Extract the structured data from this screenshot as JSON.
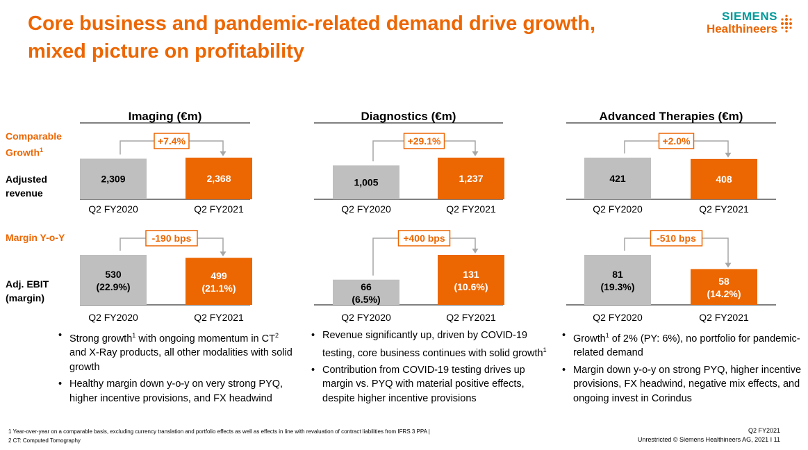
{
  "title": {
    "line1": "Core business and pandemic-related demand drive growth,",
    "line2": "mixed picture on profitability"
  },
  "logo": {
    "brand": "SIEMENS",
    "product": "Healthineers",
    "dots_icon": "dots-icon"
  },
  "row_labels": {
    "comparable_growth": "Comparable",
    "comparable_growth_2": "Growth",
    "comparable_growth_sup": "1",
    "adjusted_revenue_1": "Adjusted",
    "adjusted_revenue_2": "revenue",
    "margin_yoy": "Margin Y-o-Y",
    "adj_ebit_1": "Adj. EBIT",
    "adj_ebit_2": "(margin)"
  },
  "colors": {
    "accent": "#ec6602",
    "prior": "#bfbfbf",
    "connector": "#a6a6a6"
  },
  "chart_data": [
    {
      "type": "bar",
      "segment": "Imaging (€m)",
      "metric": "Adjusted revenue",
      "categories": [
        "Q2 FY2020",
        "Q2 FY2021"
      ],
      "values": [
        2309,
        2368
      ],
      "labels": [
        "2,309",
        "2,368"
      ],
      "change_label": "+7.4%"
    },
    {
      "type": "bar",
      "segment": "Diagnostics (€m)",
      "metric": "Adjusted revenue",
      "categories": [
        "Q2 FY2020",
        "Q2 FY2021"
      ],
      "values": [
        1005,
        1237
      ],
      "labels": [
        "1,005",
        "1,237"
      ],
      "change_label": "+29.1%"
    },
    {
      "type": "bar",
      "segment": "Advanced Therapies (€m)",
      "metric": "Adjusted revenue",
      "categories": [
        "Q2 FY2020",
        "Q2 FY2021"
      ],
      "values": [
        421,
        408
      ],
      "labels": [
        "421",
        "408"
      ],
      "change_label": "+2.0%"
    },
    {
      "type": "bar",
      "segment": "Imaging (€m)",
      "metric": "Adj. EBIT",
      "categories": [
        "Q2 FY2020",
        "Q2 FY2021"
      ],
      "values": [
        530,
        499
      ],
      "labels": [
        "530",
        "499"
      ],
      "margins": [
        "(22.9%)",
        "(21.1%)"
      ],
      "change_label": "-190 bps"
    },
    {
      "type": "bar",
      "segment": "Diagnostics (€m)",
      "metric": "Adj. EBIT",
      "categories": [
        "Q2 FY2020",
        "Q2 FY2021"
      ],
      "values": [
        66,
        131
      ],
      "labels": [
        "66",
        "131"
      ],
      "margins": [
        "(6.5%)",
        "(10.6%)"
      ],
      "change_label": "+400 bps"
    },
    {
      "type": "bar",
      "segment": "Advanced Therapies (€m)",
      "metric": "Adj. EBIT",
      "categories": [
        "Q2 FY2020",
        "Q2 FY2021"
      ],
      "values": [
        81,
        58
      ],
      "labels": [
        "81",
        "58"
      ],
      "margins": [
        "(19.3%)",
        "(14.2%)"
      ],
      "change_label": "-510 bps"
    }
  ],
  "bullets": {
    "imaging": [
      {
        "pre": "Strong growth",
        "sup": "1",
        "mid": " with ongoing momentum in CT",
        "sup2": "2",
        "post": " and X-Ray products, all other modalities with solid growth"
      },
      {
        "pre": "Healthy margin down y-o-y on very strong PYQ, higher incentive provisions, and FX headwind",
        "sup": "",
        "mid": "",
        "sup2": "",
        "post": ""
      }
    ],
    "diagnostics": [
      {
        "pre": "Revenue significantly up, driven by COVID-19 testing, core business continues with solid growth",
        "sup": "1",
        "mid": "",
        "sup2": "",
        "post": ""
      },
      {
        "pre": "Contribution from COVID-19 testing drives up margin vs. PYQ with material positive effects, despite higher incentive provisions",
        "sup": "",
        "mid": "",
        "sup2": "",
        "post": ""
      }
    ],
    "advanced_therapies": [
      {
        "pre": "Growth",
        "sup": "1",
        "mid": " of 2% (PY: 6%), no portfolio for pandemic-related demand",
        "sup2": "",
        "post": ""
      },
      {
        "pre": "Margin down y-o-y on strong PYQ, higher incentive provisions, FX headwind, negative mix effects, and ongoing invest in Corindus",
        "sup": "",
        "mid": "",
        "sup2": "",
        "post": ""
      }
    ]
  },
  "footnotes": {
    "note1": "1 Year-over-year on a comparable basis, excluding currency translation and portfolio effects as well as effects in line with revaluation of contract liabilities from IFRS 3 PPA |",
    "note2": "2 CT: Computed Tomography"
  },
  "footer": {
    "period": "Q2 FY2021",
    "copyright": "Unrestricted © Siemens Healthineers AG, 2021 I",
    "page": "11"
  }
}
